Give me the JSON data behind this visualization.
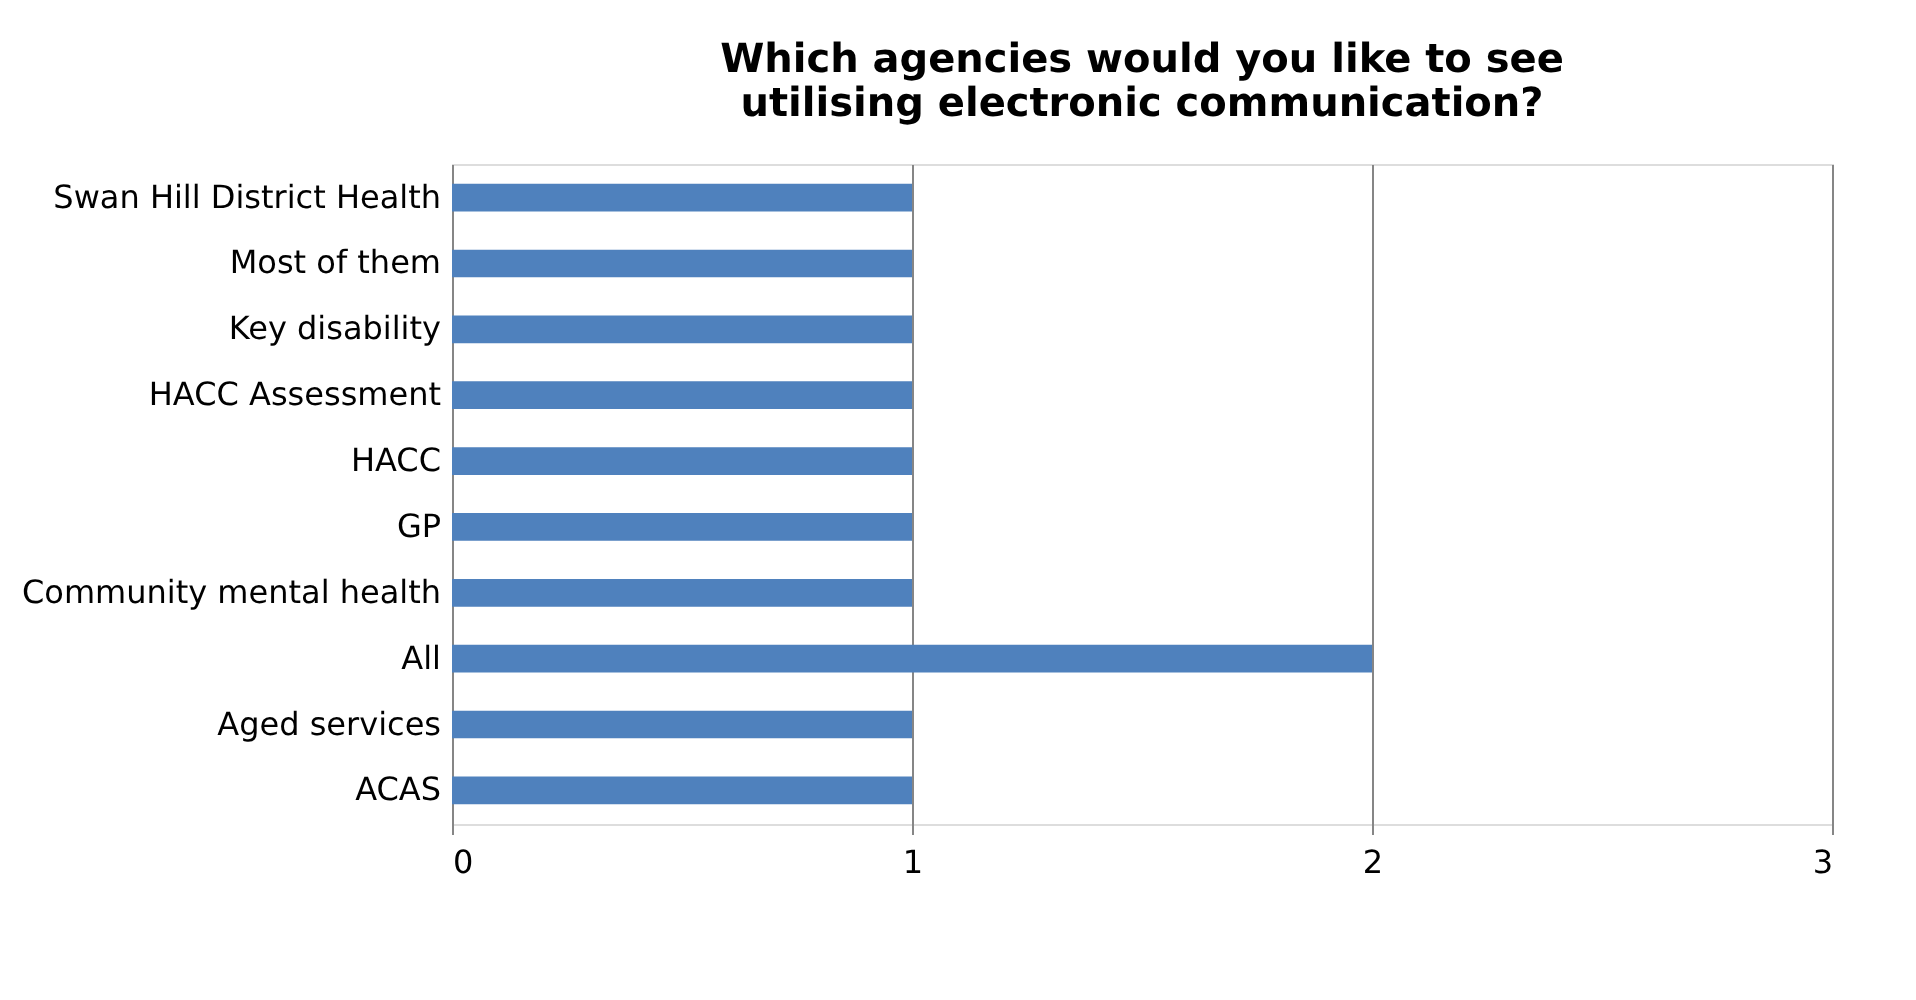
{
  "chart_data": {
    "type": "bar",
    "orientation": "horizontal",
    "title": "Which agencies would you like to see utilising electronic communication?",
    "categories": [
      "Swan Hill District Health",
      "Most of them",
      "Key disability",
      "HACC Assessment",
      "HACC",
      "GP",
      "Community mental health",
      "All",
      "Aged services",
      "ACAS"
    ],
    "values": [
      1,
      1,
      1,
      1,
      1,
      1,
      1,
      2,
      1,
      1
    ],
    "color": "#4f81bd",
    "xlim": [
      0,
      3
    ],
    "xticks": [
      0,
      1,
      2,
      3
    ],
    "grid": "x"
  }
}
